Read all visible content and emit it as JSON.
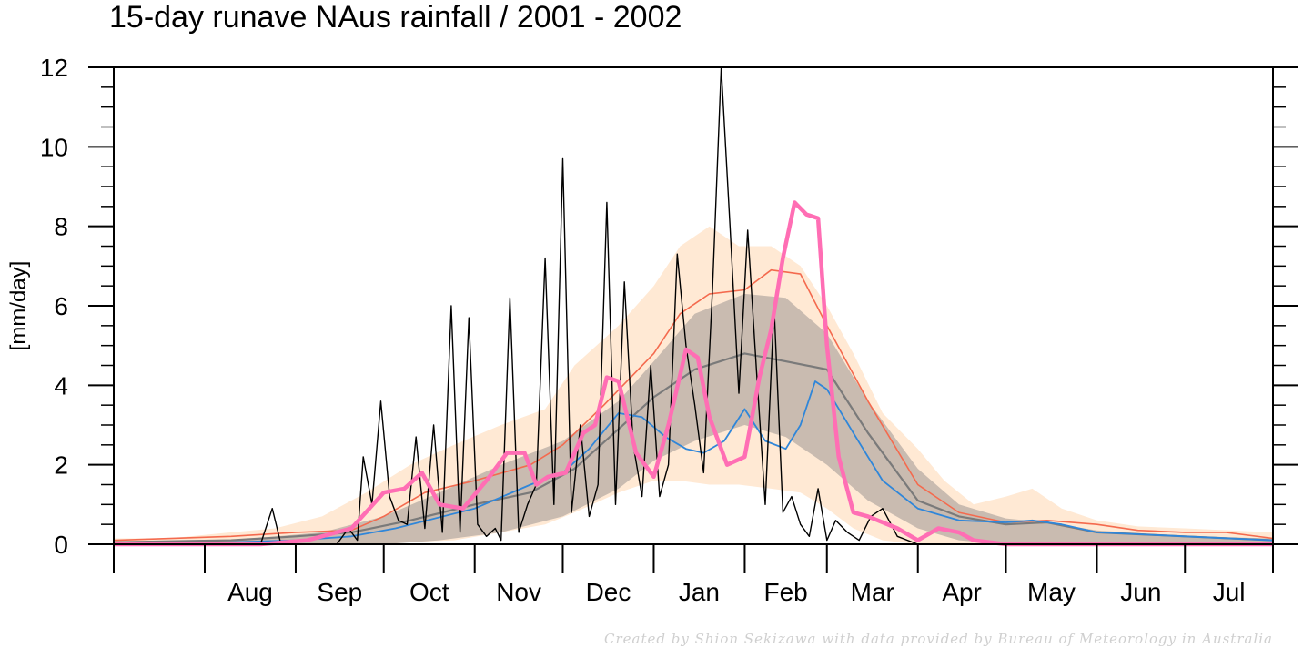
{
  "chart_data": {
    "type": "line",
    "title": "15-day runave NAus rainfall  /  2001 - 2002",
    "ylabel": "[mm/day]",
    "xlabel": "",
    "ylim": [
      0,
      12
    ],
    "yticks": [
      0,
      2,
      4,
      6,
      8,
      10,
      12
    ],
    "x_start": "2001-07-01",
    "x_end": "2002-07-31",
    "months": [
      "Aug",
      "Sep",
      "Oct",
      "Nov",
      "Dec",
      "Jan",
      "Feb",
      "Mar",
      "Apr",
      "May",
      "Jun",
      "Jul"
    ],
    "month_start_dates": [
      "2001-08-01",
      "2001-09-01",
      "2001-10-01",
      "2001-11-01",
      "2001-12-01",
      "2002-01-01",
      "2002-02-01",
      "2002-03-01",
      "2002-04-01",
      "2002-05-01",
      "2002-06-01",
      "2002-07-01"
    ],
    "colors": {
      "outer_band": "#ffe9d4",
      "inner_band": "#c9bbb0",
      "daily": "#000000",
      "runave_15day": "#ff6eb4",
      "climatology_mean": "#f46a4e",
      "climatology_median": "#7a7a7a",
      "other": "#2f86d9"
    },
    "series": [
      {
        "key": "outer_band",
        "dates": [
          "2001-07-01",
          "2001-07-20",
          "2001-08-10",
          "2001-08-25",
          "2001-09-10",
          "2001-09-25",
          "2001-10-10",
          "2001-10-25",
          "2001-11-10",
          "2001-11-25",
          "2001-12-05",
          "2001-12-20",
          "2002-01-01",
          "2002-01-10",
          "2002-01-20",
          "2002-01-30",
          "2002-02-10",
          "2002-02-20",
          "2002-03-01",
          "2002-03-10",
          "2002-03-20",
          "2002-04-01",
          "2002-04-10",
          "2002-04-20",
          "2002-05-01",
          "2002-05-10",
          "2002-05-20",
          "2002-06-01",
          "2002-06-15",
          "2002-07-01",
          "2002-07-31"
        ],
        "lower": [
          0,
          0,
          0,
          0,
          0,
          0,
          0.05,
          0.1,
          0.3,
          0.5,
          0.8,
          1.3,
          1.6,
          1.6,
          1.5,
          1.5,
          1.4,
          1.3,
          0.9,
          0.4,
          0.1,
          0,
          0,
          0,
          0,
          0,
          0,
          0,
          0,
          0,
          0
        ],
        "upper": [
          0.15,
          0.15,
          0.3,
          0.4,
          0.7,
          1.3,
          2.0,
          2.5,
          3.0,
          3.4,
          4.5,
          5.5,
          6.5,
          7.5,
          8.0,
          7.5,
          7.5,
          7.0,
          6.0,
          4.8,
          3.3,
          2.4,
          1.6,
          1.0,
          1.2,
          1.4,
          0.9,
          0.6,
          0.45,
          0.4,
          0.3
        ]
      },
      {
        "key": "inner_band",
        "dates": [
          "2001-07-01",
          "2001-08-10",
          "2001-09-10",
          "2001-10-01",
          "2001-10-20",
          "2001-11-10",
          "2001-12-01",
          "2001-12-20",
          "2002-01-01",
          "2002-01-15",
          "2002-02-01",
          "2002-02-15",
          "2002-03-01",
          "2002-03-15",
          "2002-04-01",
          "2002-04-15",
          "2002-05-01",
          "2002-05-15",
          "2002-06-01",
          "2002-07-01",
          "2002-07-31"
        ],
        "lower": [
          0,
          0,
          0,
          0,
          0.1,
          0.3,
          0.7,
          1.4,
          2.1,
          2.6,
          3.0,
          2.7,
          2.0,
          1.1,
          0.4,
          0.1,
          0,
          0,
          0,
          0,
          0
        ],
        "upper": [
          0.05,
          0.1,
          0.3,
          0.7,
          1.3,
          2.0,
          2.6,
          3.6,
          4.6,
          5.8,
          6.3,
          6.2,
          5.3,
          3.6,
          1.9,
          1.0,
          0.65,
          0.55,
          0.35,
          0.2,
          0.15
        ]
      },
      {
        "key": "climatology_mean",
        "name": "",
        "dates": [
          "2001-07-01",
          "2001-08-10",
          "2001-09-01",
          "2001-09-20",
          "2001-10-01",
          "2001-10-15",
          "2001-11-01",
          "2001-11-20",
          "2001-12-01",
          "2001-12-15",
          "2002-01-01",
          "2002-01-10",
          "2002-01-20",
          "2002-02-01",
          "2002-02-10",
          "2002-02-20",
          "2002-03-01",
          "2002-03-15",
          "2002-04-01",
          "2002-04-15",
          "2002-05-01",
          "2002-05-15",
          "2002-06-01",
          "2002-06-15",
          "2002-07-01",
          "2002-07-15",
          "2002-07-31"
        ],
        "values": [
          0.1,
          0.2,
          0.3,
          0.35,
          0.7,
          1.3,
          1.6,
          2.0,
          2.5,
          3.5,
          4.8,
          5.8,
          6.3,
          6.4,
          6.9,
          6.8,
          5.5,
          3.6,
          1.5,
          0.8,
          0.55,
          0.6,
          0.5,
          0.35,
          0.3,
          0.3,
          0.15
        ]
      },
      {
        "key": "climatology_median",
        "name": "",
        "dates": [
          "2001-07-01",
          "2001-08-10",
          "2001-09-01",
          "2001-09-20",
          "2001-10-10",
          "2001-11-01",
          "2001-11-20",
          "2001-12-05",
          "2001-12-20",
          "2002-01-01",
          "2002-01-15",
          "2002-02-01",
          "2002-02-15",
          "2002-03-01",
          "2002-03-15",
          "2002-04-01",
          "2002-04-15",
          "2002-05-01",
          "2002-05-15",
          "2002-06-01",
          "2002-07-01",
          "2002-07-31"
        ],
        "values": [
          0.05,
          0.1,
          0.2,
          0.3,
          0.6,
          1.0,
          1.3,
          1.9,
          2.9,
          3.7,
          4.4,
          4.8,
          4.6,
          4.4,
          2.8,
          1.1,
          0.7,
          0.5,
          0.55,
          0.3,
          0.2,
          0.1
        ]
      },
      {
        "key": "other",
        "name": "",
        "dates": [
          "2001-07-01",
          "2001-08-10",
          "2001-09-01",
          "2001-09-20",
          "2001-10-05",
          "2001-11-01",
          "2001-11-20",
          "2001-12-01",
          "2001-12-10",
          "2001-12-20",
          "2001-12-28",
          "2002-01-05",
          "2002-01-12",
          "2002-01-18",
          "2002-01-25",
          "2002-02-01",
          "2002-02-08",
          "2002-02-15",
          "2002-02-20",
          "2002-02-25",
          "2002-03-01",
          "2002-03-10",
          "2002-03-20",
          "2002-04-01",
          "2002-04-15",
          "2002-05-01",
          "2002-05-10",
          "2002-05-20",
          "2002-06-01",
          "2002-07-01",
          "2002-07-31"
        ],
        "values": [
          0,
          0.05,
          0.1,
          0.2,
          0.4,
          0.9,
          1.5,
          1.8,
          2.4,
          3.3,
          3.2,
          2.7,
          2.4,
          2.3,
          2.6,
          3.4,
          2.6,
          2.4,
          3.0,
          4.1,
          3.9,
          2.8,
          1.6,
          0.9,
          0.6,
          0.55,
          0.6,
          0.5,
          0.3,
          0.2,
          0.1
        ]
      },
      {
        "key": "daily",
        "name": "",
        "dates": [
          "2001-07-01",
          "2001-08-20",
          "2001-08-24",
          "2001-08-27",
          "2001-09-05",
          "2001-09-15",
          "2001-09-19",
          "2001-09-22",
          "2001-09-24",
          "2001-09-27",
          "2001-09-30",
          "2001-10-03",
          "2001-10-06",
          "2001-10-09",
          "2001-10-12",
          "2001-10-15",
          "2001-10-18",
          "2001-10-21",
          "2001-10-24",
          "2001-10-27",
          "2001-10-30",
          "2001-11-02",
          "2001-11-05",
          "2001-11-08",
          "2001-11-10",
          "2001-11-13",
          "2001-11-16",
          "2001-11-19",
          "2001-11-22",
          "2001-11-25",
          "2001-11-28",
          "2001-12-01",
          "2001-12-04",
          "2001-12-07",
          "2001-12-10",
          "2001-12-13",
          "2001-12-16",
          "2001-12-19",
          "2001-12-22",
          "2001-12-25",
          "2001-12-28",
          "2001-12-31",
          "2002-01-03",
          "2002-01-06",
          "2002-01-09",
          "2002-01-12",
          "2002-01-15",
          "2002-01-18",
          "2002-01-21",
          "2002-01-24",
          "2002-01-27",
          "2002-01-30",
          "2002-02-02",
          "2002-02-05",
          "2002-02-08",
          "2002-02-11",
          "2002-02-14",
          "2002-02-17",
          "2002-02-20",
          "2002-02-23",
          "2002-02-26",
          "2002-03-01",
          "2002-03-04",
          "2002-03-08",
          "2002-03-12",
          "2002-03-16",
          "2002-03-20",
          "2002-03-25",
          "2002-04-01",
          "2002-04-08",
          "2002-04-15",
          "2002-04-20",
          "2002-05-01",
          "2002-07-31"
        ],
        "values": [
          0,
          0,
          0.9,
          0,
          0,
          0,
          0.4,
          0.1,
          2.2,
          1.0,
          3.6,
          1.2,
          0.6,
          0.5,
          2.7,
          0.4,
          3.0,
          0.3,
          6.0,
          0.3,
          5.7,
          0.5,
          0.2,
          0.4,
          0.1,
          6.2,
          0.3,
          1.0,
          1.5,
          7.2,
          1.0,
          9.7,
          0.8,
          3.0,
          0.7,
          1.5,
          8.6,
          1.0,
          6.6,
          2.5,
          1.2,
          4.5,
          1.2,
          2.0,
          7.3,
          5.0,
          3.5,
          1.8,
          6.4,
          12.0,
          8.0,
          3.8,
          7.9,
          4.4,
          1.0,
          6.0,
          0.8,
          1.2,
          0.5,
          0.2,
          1.4,
          0.1,
          0.6,
          0.3,
          0.1,
          0.7,
          0.9,
          0.2,
          0,
          0,
          0,
          0,
          0,
          0
        ]
      },
      {
        "key": "runave_15day",
        "name": "",
        "dates": [
          "2001-07-01",
          "2001-08-20",
          "2001-09-05",
          "2001-09-20",
          "2001-10-01",
          "2001-10-08",
          "2001-10-14",
          "2001-10-20",
          "2001-10-28",
          "2001-11-05",
          "2001-11-12",
          "2001-11-18",
          "2001-11-22",
          "2001-11-26",
          "2001-12-02",
          "2001-12-08",
          "2001-12-12",
          "2001-12-16",
          "2001-12-20",
          "2001-12-26",
          "2002-01-01",
          "2002-01-06",
          "2002-01-12",
          "2002-01-16",
          "2002-01-20",
          "2002-01-26",
          "2002-02-01",
          "2002-02-06",
          "2002-02-10",
          "2002-02-14",
          "2002-02-18",
          "2002-02-22",
          "2002-02-26",
          "2002-03-01",
          "2002-03-05",
          "2002-03-10",
          "2002-03-15",
          "2002-03-25",
          "2002-04-01",
          "2002-04-08",
          "2002-04-15",
          "2002-04-20",
          "2002-05-01",
          "2002-07-31"
        ],
        "values": [
          0,
          0,
          0.1,
          0.4,
          1.3,
          1.4,
          1.8,
          1.0,
          0.9,
          1.6,
          2.3,
          2.3,
          1.5,
          1.7,
          1.8,
          2.8,
          3.0,
          4.2,
          4.1,
          2.3,
          1.7,
          3.0,
          4.9,
          4.7,
          3.2,
          2.0,
          2.2,
          4.2,
          5.4,
          7.2,
          8.6,
          8.3,
          8.2,
          5.0,
          2.2,
          0.8,
          0.7,
          0.4,
          0.1,
          0.4,
          0.3,
          0.1,
          0,
          0
        ]
      }
    ]
  },
  "credit": "Created by Shion Sekizawa with data provided by Bureau of Meteorology in Australia"
}
